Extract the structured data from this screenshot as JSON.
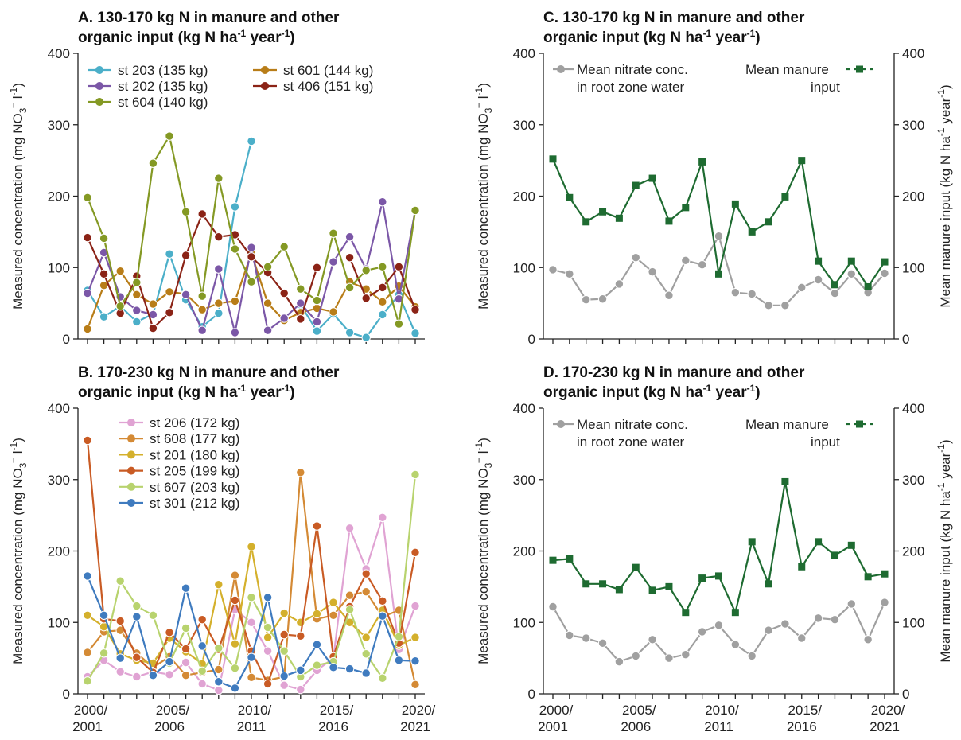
{
  "chart_data": [
    {
      "id": "A",
      "type": "line",
      "title_line1": "A. 130-170 kg N in manure and other",
      "title_line2_pre": "organic input (kg N ha",
      "title_sup1": "-1",
      "title_mid": " year",
      "title_sup2": "-1",
      "title_post": ")",
      "ylabel_pre": "Measured concentration (mg NO",
      "ylabel_sub": "3",
      "ylabel_sup": "–",
      "ylabel_mid": " l",
      "ylabel_sup2": "-1",
      "ylabel_post": ")",
      "ylim": [
        0,
        400
      ],
      "yticks": [
        0,
        100,
        200,
        300,
        400
      ],
      "x": [
        2000,
        2001,
        2002,
        2003,
        2004,
        2005,
        2006,
        2007,
        2008,
        2009,
        2010,
        2011,
        2012,
        2013,
        2014,
        2015,
        2016,
        2017,
        2018,
        2019,
        2020
      ],
      "series": [
        {
          "name": "st 203 (135 kg)",
          "color": "#4bafc9",
          "values": [
            68,
            31,
            46,
            24,
            35,
            119,
            55,
            17,
            36,
            185,
            277,
            null,
            null,
            48,
            11,
            35,
            9,
            2,
            34,
            62,
            8
          ]
        },
        {
          "name": "st 601 (144 kg)",
          "color": "#b87d18",
          "values": [
            14,
            75,
            95,
            62,
            49,
            66,
            63,
            41,
            50,
            53,
            120,
            50,
            26,
            37,
            43,
            38,
            80,
            70,
            52,
            74,
            45
          ]
        },
        {
          "name": "st 202 (135 kg)",
          "color": "#7b57a7",
          "values": [
            64,
            121,
            59,
            40,
            34,
            null,
            62,
            12,
            98,
            9,
            128,
            12,
            29,
            50,
            24,
            108,
            143,
            98,
            192,
            56,
            180
          ]
        },
        {
          "name": "st 406 (151 kg)",
          "color": "#8b2316",
          "values": [
            142,
            91,
            36,
            88,
            15,
            37,
            117,
            175,
            143,
            146,
            115,
            93,
            64,
            28,
            100,
            null,
            114,
            57,
            72,
            101,
            41
          ]
        },
        {
          "name": "st 604 (140 kg)",
          "color": "#849924",
          "values": [
            198,
            141,
            46,
            79,
            246,
            284,
            178,
            60,
            225,
            126,
            80,
            101,
            129,
            70,
            54,
            148,
            72,
            96,
            101,
            21,
            180
          ]
        }
      ]
    },
    {
      "id": "B",
      "type": "line",
      "title_line1": "B. 170-230 kg N in manure and other",
      "title_line2_pre": "organic input (kg N ha",
      "title_sup1": "-1",
      "title_mid": " year",
      "title_sup2": "-1",
      "title_post": ")",
      "ylabel_pre": "Measured concentration (mg NO",
      "ylabel_sub": "3",
      "ylabel_sup": "–",
      "ylabel_mid": " l",
      "ylabel_sup2": "-1",
      "ylabel_post": ")",
      "ylim": [
        0,
        400
      ],
      "yticks": [
        0,
        100,
        200,
        300,
        400
      ],
      "x": [
        2000,
        2001,
        2002,
        2003,
        2004,
        2005,
        2006,
        2007,
        2008,
        2009,
        2010,
        2011,
        2012,
        2013,
        2014,
        2015,
        2016,
        2017,
        2018,
        2019,
        2020
      ],
      "xtick_years": [
        2000,
        2005,
        2010,
        2015,
        2020
      ],
      "xtick_labels_top": [
        "2000/",
        "2005/",
        "2010/",
        "2015/",
        "2020/"
      ],
      "xtick_labels_bottom": [
        "2001",
        "2006",
        "2011",
        "2016",
        "2021"
      ],
      "series": [
        {
          "name": "st 206 (172 kg)",
          "color": "#e0a3d3",
          "values": [
            24,
            47,
            31,
            24,
            31,
            27,
            44,
            14,
            5,
            118,
            100,
            60,
            12,
            6,
            33,
            50,
            232,
            175,
            247,
            62,
            123
          ]
        },
        {
          "name": "st 608 (177 kg)",
          "color": "#d48a35",
          "values": [
            58,
            87,
            89,
            57,
            37,
            52,
            26,
            30,
            34,
            166,
            23,
            19,
            24,
            310,
            105,
            110,
            138,
            143,
            108,
            117,
            13
          ]
        },
        {
          "name": "st 201 (180 kg)",
          "color": "#d4b02c",
          "values": [
            110,
            94,
            56,
            47,
            43,
            78,
            59,
            42,
            153,
            70,
            206,
            79,
            113,
            100,
            112,
            128,
            100,
            79,
            117,
            68,
            79
          ]
        },
        {
          "name": "st 205 (199 kg)",
          "color": "#c95b24",
          "values": [
            355,
            105,
            102,
            51,
            30,
            86,
            63,
            104,
            62,
            131,
            60,
            14,
            83,
            81,
            235,
            52,
            122,
            168,
            130,
            71,
            198
          ]
        },
        {
          "name": "st 607 (203 kg)",
          "color": "#b8d36e",
          "values": [
            18,
            57,
            158,
            123,
            110,
            43,
            92,
            32,
            64,
            36,
            135,
            93,
            60,
            24,
            40,
            45,
            118,
            56,
            22,
            80,
            307
          ]
        },
        {
          "name": "st 301 (212 kg)",
          "color": "#3f7bbf",
          "values": [
            165,
            110,
            50,
            108,
            26,
            45,
            148,
            67,
            17,
            8,
            51,
            135,
            25,
            33,
            69,
            37,
            35,
            29,
            109,
            47,
            46
          ]
        }
      ]
    },
    {
      "id": "C",
      "type": "line",
      "title_line1": "C. 130-170 kg N in manure and other",
      "title_line2_pre": "organic input (kg N ha",
      "title_sup1": "-1",
      "title_mid": " year",
      "title_sup2": "-1",
      "title_post": ")",
      "ylabel_pre": "Measured concentration (mg NO",
      "ylabel_sub": "3",
      "ylabel_sup": "–",
      "ylabel_mid": " l",
      "ylabel_sup2": "-1",
      "ylabel_post": ")",
      "y2label_pre": "Mean manure input (kg N ha",
      "y2label_sup1": "-1",
      "y2label_mid": " year",
      "y2label_sup2": "-1",
      "y2label_post": ")",
      "ylim": [
        0,
        400
      ],
      "yticks": [
        0,
        100,
        200,
        300,
        400
      ],
      "x": [
        2000,
        2001,
        2002,
        2003,
        2004,
        2005,
        2006,
        2007,
        2008,
        2009,
        2010,
        2011,
        2012,
        2013,
        2014,
        2015,
        2016,
        2017,
        2018,
        2019,
        2020
      ],
      "legend": {
        "nitrate_line1": "Mean nitrate conc.",
        "nitrate_line2": "in root zone water",
        "manure_line1": "Mean manure",
        "manure_line2": "input"
      },
      "series": [
        {
          "name": "Mean nitrate conc. in root zone water",
          "color": "#a0a0a0",
          "marker": "circle",
          "values": [
            97,
            91,
            55,
            56,
            77,
            114,
            94,
            61,
            110,
            104,
            144,
            65,
            63,
            47,
            47,
            72,
            83,
            64,
            91,
            65,
            92
          ]
        },
        {
          "name": "Mean manure input",
          "color": "#1e6b31",
          "marker": "square",
          "values": [
            252,
            198,
            164,
            178,
            169,
            215,
            225,
            165,
            184,
            248,
            91,
            189,
            150,
            164,
            199,
            250,
            109,
            76,
            109,
            73,
            108
          ]
        }
      ]
    },
    {
      "id": "D",
      "type": "line",
      "title_line1": "D. 170-230 kg N in manure and other",
      "title_line2_pre": "organic input (kg N ha",
      "title_sup1": "-1",
      "title_mid": " year",
      "title_sup2": "-1",
      "title_post": ")",
      "ylabel_pre": "Measured concentration (mg NO",
      "ylabel_sub": "3",
      "ylabel_sup": "–",
      "ylabel_mid": " l",
      "ylabel_sup2": "-1",
      "ylabel_post": ")",
      "y2label_pre": "Mean manure input (kg N ha",
      "y2label_sup1": "-1",
      "y2label_mid": " year",
      "y2label_sup2": "-1",
      "y2label_post": ")",
      "ylim": [
        0,
        400
      ],
      "yticks": [
        0,
        100,
        200,
        300,
        400
      ],
      "x": [
        2000,
        2001,
        2002,
        2003,
        2004,
        2005,
        2006,
        2007,
        2008,
        2009,
        2010,
        2011,
        2012,
        2013,
        2014,
        2015,
        2016,
        2017,
        2018,
        2019,
        2020
      ],
      "xtick_years": [
        2000,
        2005,
        2010,
        2015,
        2020
      ],
      "xtick_labels_top": [
        "2000/",
        "2005/",
        "2010/",
        "2015/",
        "2020/"
      ],
      "xtick_labels_bottom": [
        "2001",
        "2006",
        "2011",
        "2016",
        "2021"
      ],
      "legend": {
        "nitrate_line1": "Mean nitrate conc.",
        "nitrate_line2": "in root zone water",
        "manure_line1": "Mean manure",
        "manure_line2": "input"
      },
      "series": [
        {
          "name": "Mean nitrate conc. in root zone water",
          "color": "#a0a0a0",
          "marker": "circle",
          "values": [
            122,
            82,
            78,
            71,
            45,
            53,
            76,
            50,
            55,
            87,
            96,
            69,
            53,
            89,
            98,
            78,
            106,
            104,
            126,
            76,
            128
          ]
        },
        {
          "name": "Mean manure input",
          "color": "#1e6b31",
          "marker": "square",
          "values": [
            187,
            189,
            154,
            154,
            146,
            177,
            145,
            150,
            114,
            162,
            165,
            114,
            213,
            154,
            297,
            178,
            213,
            194,
            208,
            164,
            168
          ]
        }
      ]
    }
  ]
}
